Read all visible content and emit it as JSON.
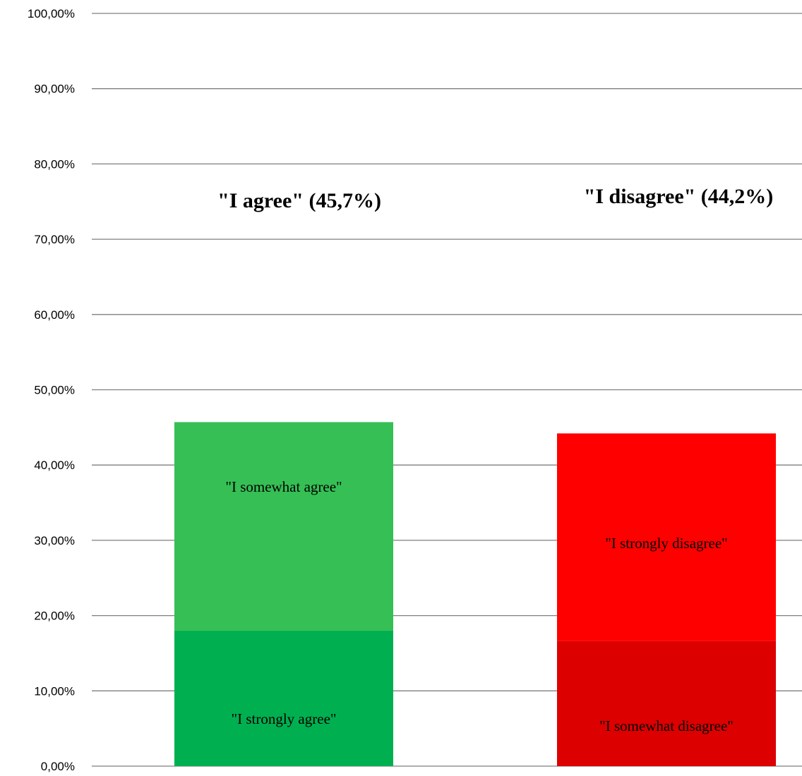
{
  "chart_data": {
    "type": "bar",
    "stacked": true,
    "categories": [
      "\"I agree\" (45,7%)",
      "\"I disagree\" (44,2%)"
    ],
    "ylim": [
      0,
      100
    ],
    "yticks": [
      "0,00%",
      "10,00%",
      "20,00%",
      "30,00%",
      "40,00%",
      "50,00%",
      "60,00%",
      "70,00%",
      "80,00%",
      "90,00%",
      "100,00%"
    ],
    "grid": true,
    "legend": "none",
    "stacks": [
      {
        "title": "\"I agree\" (45,7%)",
        "total": 45.7,
        "segments": [
          {
            "label": "\"I strongly agree\"",
            "value": 18.0,
            "color": "#00b050"
          },
          {
            "label": "\"I somewhat agree\"",
            "value": 27.7,
            "color": "#35bf55"
          }
        ]
      },
      {
        "title": "\"I disagree\" (44,2%)",
        "total": 44.2,
        "segments": [
          {
            "label": "\"I somewhat disagree\"",
            "value": 16.6,
            "color": "#dc0000"
          },
          {
            "label": "\"I strongly disagree\"",
            "value": 27.6,
            "color": "#ff0000"
          }
        ]
      }
    ]
  }
}
